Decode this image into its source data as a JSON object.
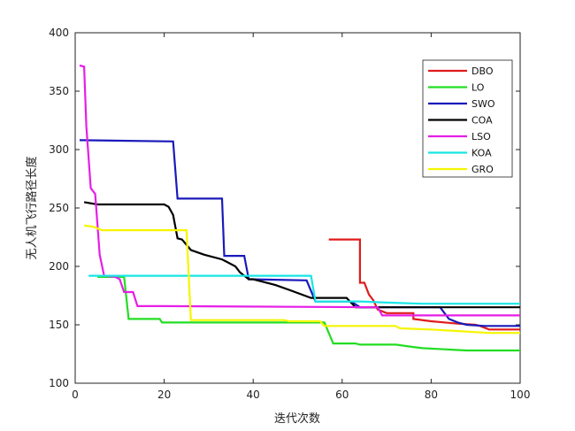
{
  "chart_data": {
    "type": "line",
    "title": "",
    "xlabel": "迭代次数",
    "ylabel": "无人机飞行路径长度",
    "xlim": [
      0,
      100
    ],
    "ylim": [
      100,
      400
    ],
    "xticks": [
      "0",
      "20",
      "40",
      "60",
      "80",
      "100"
    ],
    "yticks": [
      "100",
      "150",
      "200",
      "250",
      "300",
      "350",
      "400"
    ],
    "grid": false,
    "legend_position": "top-right",
    "series": [
      {
        "name": "DBO",
        "color": "#e01b1b",
        "x": [
          57,
          64,
          64,
          65,
          66,
          67,
          68,
          70,
          76,
          76,
          80,
          86,
          90,
          91,
          93,
          100
        ],
        "y": [
          223,
          223,
          186,
          186,
          176,
          171,
          163,
          160,
          160,
          155,
          153,
          151,
          150,
          149,
          146,
          146
        ]
      },
      {
        "name": "LO",
        "color": "#22dd22",
        "x": [
          5,
          11,
          12,
          19,
          19.5,
          56,
          58,
          63,
          64,
          72,
          76,
          78,
          83,
          88,
          100
        ],
        "y": [
          191,
          191,
          155,
          155,
          152,
          152,
          134,
          134,
          133,
          133,
          131,
          130,
          129,
          128,
          128
        ]
      },
      {
        "name": "SWO",
        "color": "#1a1aba",
        "x": [
          1,
          22,
          23,
          33,
          33.5,
          38,
          39,
          52,
          54,
          62,
          64,
          82,
          83,
          84,
          86,
          88,
          92,
          100
        ],
        "y": [
          308,
          307,
          258,
          258,
          209,
          209,
          189,
          188,
          170,
          170,
          165,
          165,
          160,
          155,
          152,
          150,
          149,
          149
        ]
      },
      {
        "name": "COA",
        "color": "#000000",
        "x": [
          2,
          5,
          20,
          21,
          22,
          23,
          24,
          26,
          29,
          33,
          36,
          37,
          39,
          40,
          45,
          48,
          53,
          61,
          63,
          74,
          82,
          100
        ],
        "y": [
          255,
          253,
          253,
          251,
          244,
          224,
          223,
          214,
          210,
          206,
          200,
          195,
          189,
          189,
          184,
          180,
          173,
          173,
          165,
          165,
          165,
          165
        ]
      },
      {
        "name": "LSO",
        "color": "#e61ee6",
        "x": [
          1,
          2,
          2.5,
          3.5,
          4.5,
          5.5,
          6.5,
          9,
          10,
          11,
          13,
          14,
          20,
          68,
          69,
          100
        ],
        "y": [
          372,
          371,
          320,
          267,
          262,
          210,
          192,
          191,
          189,
          178,
          178,
          166,
          166,
          165,
          158,
          158
        ]
      },
      {
        "name": "KOA",
        "color": "#19e5e5",
        "x": [
          3,
          53,
          54,
          64,
          70,
          78,
          87,
          100
        ],
        "y": [
          192,
          192,
          170,
          170,
          169,
          168,
          168,
          168
        ]
      },
      {
        "name": "GRO",
        "color": "#f5f500",
        "x": [
          2,
          4,
          6,
          25,
          26,
          47,
          48,
          55,
          56,
          72,
          73,
          80,
          93,
          100
        ],
        "y": [
          235,
          234,
          231,
          231,
          154,
          154,
          153,
          153,
          149,
          149,
          147,
          146,
          143,
          143
        ]
      }
    ]
  }
}
